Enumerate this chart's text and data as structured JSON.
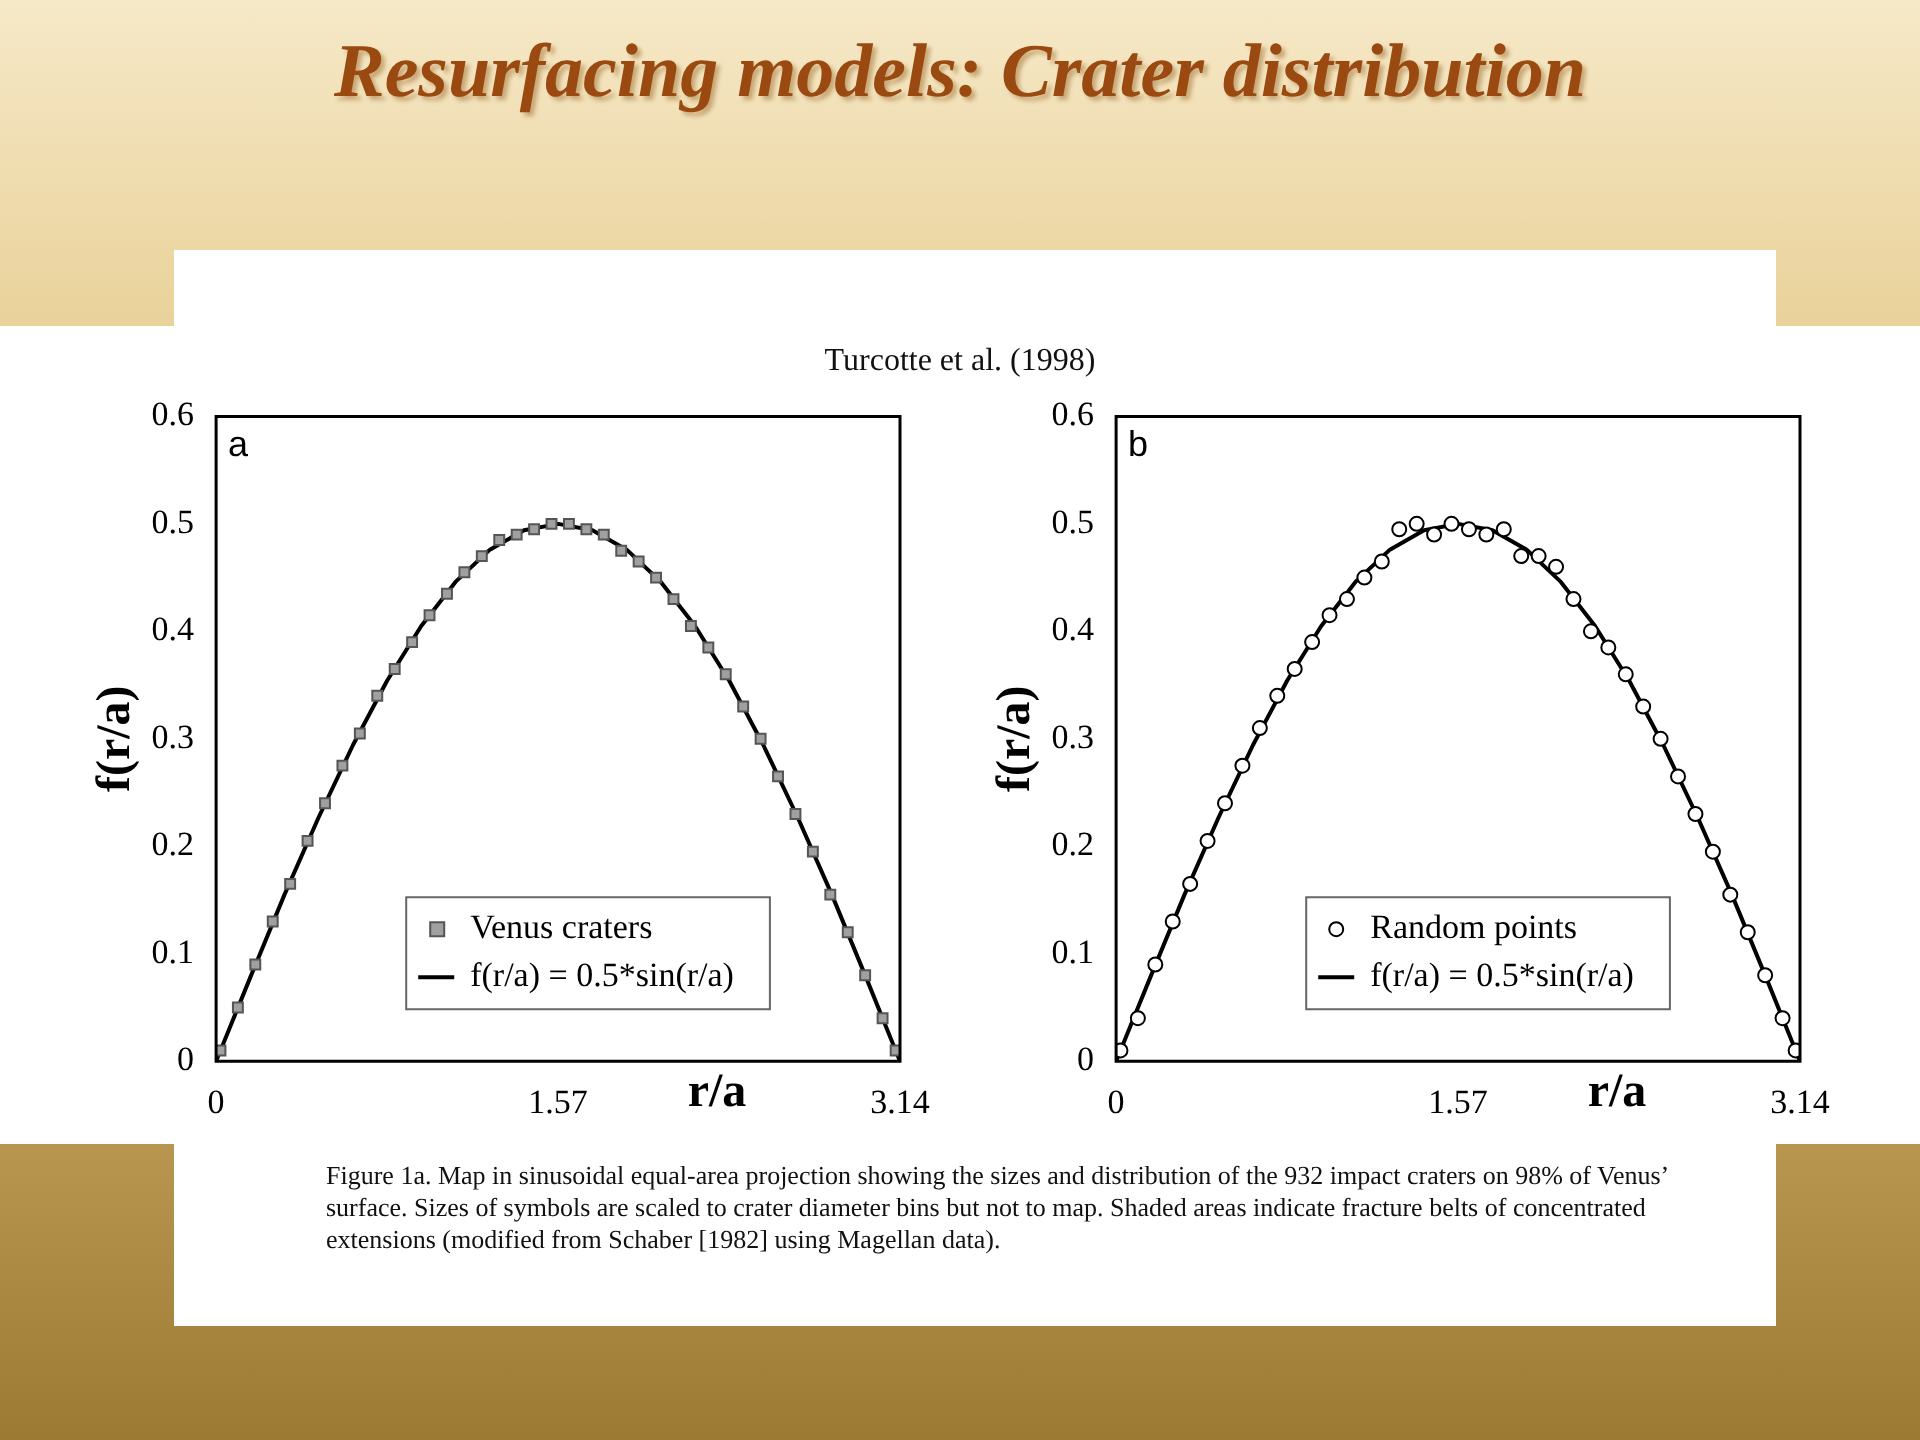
{
  "chart_data": [
    {
      "type": "scatter",
      "title": "Resurfacing models: Crater distribution",
      "xlabel": "r/a",
      "ylabel": "f(r/a)",
      "annotations": [
        "a",
        "Turcotte et al. (1998)"
      ],
      "xlim": [
        0,
        3.14
      ],
      "xticks": [
        0,
        1.57,
        3.14
      ],
      "ylim": [
        0,
        0.6
      ],
      "yticks": [
        0,
        0.1,
        0.2,
        0.3,
        0.4,
        0.5,
        0.6
      ],
      "grid": false,
      "legend": "bottom",
      "series": [
        {
          "name": "Venus craters",
          "type": "scatter",
          "marker": "square",
          "color": "#a0a0a0",
          "x": [
            0.02,
            0.1,
            0.18,
            0.26,
            0.34,
            0.42,
            0.5,
            0.58,
            0.66,
            0.74,
            0.82,
            0.9,
            0.98,
            1.06,
            1.14,
            1.22,
            1.3,
            1.38,
            1.46,
            1.54,
            1.62,
            1.7,
            1.78,
            1.86,
            1.94,
            2.02,
            2.1,
            2.18,
            2.26,
            2.34,
            2.42,
            2.5,
            2.58,
            2.66,
            2.74,
            2.82,
            2.9,
            2.98,
            3.06,
            3.12
          ],
          "values": [
            0.01,
            0.05,
            0.09,
            0.13,
            0.165,
            0.205,
            0.24,
            0.275,
            0.305,
            0.34,
            0.365,
            0.39,
            0.415,
            0.435,
            0.455,
            0.47,
            0.485,
            0.49,
            0.495,
            0.5,
            0.5,
            0.495,
            0.49,
            0.475,
            0.465,
            0.45,
            0.43,
            0.405,
            0.385,
            0.36,
            0.33,
            0.3,
            0.265,
            0.23,
            0.195,
            0.155,
            0.12,
            0.08,
            0.04,
            0.01
          ]
        },
        {
          "name": "f(r/a) = 0.5*sin(r/a)",
          "type": "line",
          "color": "#000000",
          "x": [
            0,
            0.157,
            0.314,
            0.471,
            0.628,
            0.785,
            0.942,
            1.099,
            1.257,
            1.414,
            1.571,
            1.728,
            1.885,
            2.042,
            2.199,
            2.356,
            2.513,
            2.67,
            2.827,
            2.984,
            3.14
          ],
          "values": [
            0,
            0.078,
            0.155,
            0.227,
            0.294,
            0.354,
            0.405,
            0.446,
            0.476,
            0.494,
            0.5,
            0.494,
            0.476,
            0.446,
            0.405,
            0.354,
            0.294,
            0.227,
            0.155,
            0.078,
            0
          ]
        }
      ]
    },
    {
      "type": "scatter",
      "xlabel": "r/a",
      "ylabel": "f(r/a)",
      "annotations": [
        "b",
        "Figure 1a.  Map in sinusoidal equal-area projection showing the sizes and distribution of the 932 impact craters on 98% of Venus’ surface. Sizes of symbols are scaled to crater diameter bins but not to map. Shaded areas indicate fracture belts of concentrated extensions (modified from Schaber [1982] using Magellan data)."
      ],
      "xlim": [
        0,
        3.14
      ],
      "xticks": [
        0,
        1.57,
        3.14
      ],
      "ylim": [
        0,
        0.6
      ],
      "yticks": [
        0,
        0.1,
        0.2,
        0.3,
        0.4,
        0.5,
        0.6
      ],
      "grid": false,
      "legend": "bottom",
      "series": [
        {
          "name": "Random points",
          "type": "scatter",
          "marker": "circle",
          "color": "#000000",
          "x": [
            0.02,
            0.1,
            0.18,
            0.26,
            0.34,
            0.42,
            0.5,
            0.58,
            0.66,
            0.74,
            0.82,
            0.9,
            0.98,
            1.06,
            1.14,
            1.22,
            1.3,
            1.38,
            1.46,
            1.54,
            1.62,
            1.7,
            1.78,
            1.86,
            1.94,
            2.02,
            2.1,
            2.18,
            2.26,
            2.34,
            2.42,
            2.5,
            2.58,
            2.66,
            2.74,
            2.82,
            2.9,
            2.98,
            3.06,
            3.12
          ],
          "values": [
            0.01,
            0.04,
            0.09,
            0.13,
            0.165,
            0.205,
            0.24,
            0.275,
            0.31,
            0.34,
            0.365,
            0.39,
            0.415,
            0.43,
            0.45,
            0.465,
            0.495,
            0.5,
            0.49,
            0.5,
            0.495,
            0.49,
            0.495,
            0.47,
            0.47,
            0.46,
            0.43,
            0.4,
            0.385,
            0.36,
            0.33,
            0.3,
            0.265,
            0.23,
            0.195,
            0.155,
            0.12,
            0.08,
            0.04,
            0.01
          ]
        },
        {
          "name": "f(r/a) = 0.5*sin(r/a)",
          "type": "line",
          "color": "#000000",
          "x": [
            0,
            0.157,
            0.314,
            0.471,
            0.628,
            0.785,
            0.942,
            1.099,
            1.257,
            1.414,
            1.571,
            1.728,
            1.885,
            2.042,
            2.199,
            2.356,
            2.513,
            2.67,
            2.827,
            2.984,
            3.14
          ],
          "values": [
            0,
            0.078,
            0.155,
            0.227,
            0.294,
            0.354,
            0.405,
            0.446,
            0.476,
            0.494,
            0.5,
            0.494,
            0.476,
            0.446,
            0.405,
            0.354,
            0.294,
            0.227,
            0.155,
            0.078,
            0
          ]
        }
      ]
    }
  ]
}
